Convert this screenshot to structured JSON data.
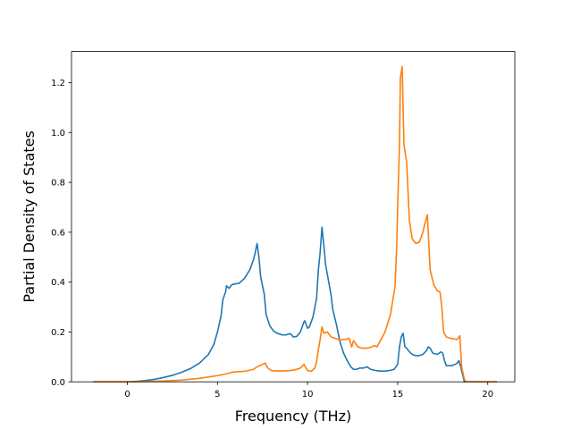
{
  "chart_data": {
    "type": "line",
    "title": "",
    "xlabel": "Frequency (THz)",
    "ylabel": "Partial Density of States",
    "xlim": [
      -3.1,
      21.5
    ],
    "ylim": [
      0.0,
      1.325
    ],
    "xticks": [
      0,
      5,
      10,
      15,
      20
    ],
    "yticks": [
      0.0,
      0.2,
      0.4,
      0.6,
      0.8,
      1.0,
      1.2
    ],
    "xtick_labels": [
      "0",
      "5",
      "10",
      "15",
      "20"
    ],
    "ytick_labels": [
      "0.0",
      "0.2",
      "0.4",
      "0.6",
      "0.8",
      "1.0",
      "1.2"
    ],
    "grid": false,
    "legend": "none",
    "series": [
      {
        "color": "#1f77b4",
        "points": [
          [
            -1.9,
            0
          ],
          [
            -1,
            0
          ],
          [
            0,
            0
          ],
          [
            0.5,
            0.002
          ],
          [
            1,
            0.005
          ],
          [
            1.5,
            0.01
          ],
          [
            2,
            0.017
          ],
          [
            2.5,
            0.026
          ],
          [
            3,
            0.038
          ],
          [
            3.5,
            0.053
          ],
          [
            4,
            0.075
          ],
          [
            4.5,
            0.11
          ],
          [
            4.8,
            0.15
          ],
          [
            5,
            0.2
          ],
          [
            5.2,
            0.265
          ],
          [
            5.3,
            0.33
          ],
          [
            5.45,
            0.36
          ],
          [
            5.5,
            0.385
          ],
          [
            5.65,
            0.375
          ],
          [
            5.8,
            0.39
          ],
          [
            6,
            0.393
          ],
          [
            6.2,
            0.395
          ],
          [
            6.5,
            0.415
          ],
          [
            6.8,
            0.45
          ],
          [
            7,
            0.49
          ],
          [
            7.1,
            0.52
          ],
          [
            7.2,
            0.555
          ],
          [
            7.3,
            0.5
          ],
          [
            7.4,
            0.42
          ],
          [
            7.6,
            0.35
          ],
          [
            7.7,
            0.27
          ],
          [
            7.9,
            0.225
          ],
          [
            8.1,
            0.205
          ],
          [
            8.3,
            0.195
          ],
          [
            8.6,
            0.188
          ],
          [
            8.8,
            0.188
          ],
          [
            9,
            0.193
          ],
          [
            9.1,
            0.19
          ],
          [
            9.2,
            0.18
          ],
          [
            9.4,
            0.182
          ],
          [
            9.6,
            0.2
          ],
          [
            9.8,
            0.24
          ],
          [
            9.85,
            0.245
          ],
          [
            10,
            0.215
          ],
          [
            10.1,
            0.22
          ],
          [
            10.3,
            0.26
          ],
          [
            10.5,
            0.335
          ],
          [
            10.6,
            0.45
          ],
          [
            10.7,
            0.52
          ],
          [
            10.8,
            0.62
          ],
          [
            10.9,
            0.55
          ],
          [
            11,
            0.47
          ],
          [
            11.1,
            0.43
          ],
          [
            11.3,
            0.35
          ],
          [
            11.4,
            0.29
          ],
          [
            11.6,
            0.23
          ],
          [
            11.8,
            0.16
          ],
          [
            12,
            0.115
          ],
          [
            12.2,
            0.085
          ],
          [
            12.4,
            0.06
          ],
          [
            12.55,
            0.05
          ],
          [
            12.7,
            0.05
          ],
          [
            12.9,
            0.055
          ],
          [
            13.1,
            0.055
          ],
          [
            13.3,
            0.06
          ],
          [
            13.5,
            0.05
          ],
          [
            13.8,
            0.045
          ],
          [
            14,
            0.043
          ],
          [
            14.3,
            0.043
          ],
          [
            14.6,
            0.046
          ],
          [
            14.8,
            0.05
          ],
          [
            15,
            0.07
          ],
          [
            15.1,
            0.14
          ],
          [
            15.2,
            0.18
          ],
          [
            15.3,
            0.195
          ],
          [
            15.4,
            0.14
          ],
          [
            15.5,
            0.135
          ],
          [
            15.6,
            0.125
          ],
          [
            15.8,
            0.11
          ],
          [
            16,
            0.105
          ],
          [
            16.2,
            0.105
          ],
          [
            16.4,
            0.11
          ],
          [
            16.6,
            0.125
          ],
          [
            16.7,
            0.14
          ],
          [
            16.8,
            0.135
          ],
          [
            16.95,
            0.115
          ],
          [
            17.2,
            0.11
          ],
          [
            17.4,
            0.12
          ],
          [
            17.5,
            0.115
          ],
          [
            17.6,
            0.085
          ],
          [
            17.7,
            0.065
          ],
          [
            18,
            0.065
          ],
          [
            18.2,
            0.07
          ],
          [
            18.3,
            0.075
          ],
          [
            18.4,
            0.085
          ],
          [
            18.5,
            0.06
          ],
          [
            18.7,
            0
          ],
          [
            19,
            0
          ],
          [
            20,
            0
          ],
          [
            20.5,
            0
          ]
        ]
      },
      {
        "color": "#ff7f0e",
        "points": [
          [
            -1.9,
            0
          ],
          [
            -1,
            0
          ],
          [
            0,
            0
          ],
          [
            1,
            0.001
          ],
          [
            2,
            0.003
          ],
          [
            3,
            0.007
          ],
          [
            4,
            0.014
          ],
          [
            5,
            0.025
          ],
          [
            5.5,
            0.032
          ],
          [
            5.8,
            0.038
          ],
          [
            6,
            0.04
          ],
          [
            6.5,
            0.042
          ],
          [
            7,
            0.05
          ],
          [
            7.2,
            0.06
          ],
          [
            7.5,
            0.07
          ],
          [
            7.65,
            0.075
          ],
          [
            7.8,
            0.055
          ],
          [
            8,
            0.045
          ],
          [
            8.5,
            0.043
          ],
          [
            9,
            0.045
          ],
          [
            9.3,
            0.048
          ],
          [
            9.6,
            0.055
          ],
          [
            9.8,
            0.07
          ],
          [
            10,
            0.045
          ],
          [
            10.2,
            0.042
          ],
          [
            10.4,
            0.055
          ],
          [
            10.5,
            0.08
          ],
          [
            10.6,
            0.13
          ],
          [
            10.7,
            0.17
          ],
          [
            10.8,
            0.22
          ],
          [
            10.9,
            0.195
          ],
          [
            11.1,
            0.2
          ],
          [
            11.3,
            0.18
          ],
          [
            11.5,
            0.175
          ],
          [
            11.8,
            0.168
          ],
          [
            12.1,
            0.17
          ],
          [
            12.3,
            0.175
          ],
          [
            12.45,
            0.14
          ],
          [
            12.55,
            0.165
          ],
          [
            12.8,
            0.14
          ],
          [
            13,
            0.135
          ],
          [
            13.3,
            0.135
          ],
          [
            13.5,
            0.138
          ],
          [
            13.7,
            0.145
          ],
          [
            13.85,
            0.14
          ],
          [
            14,
            0.16
          ],
          [
            14.3,
            0.2
          ],
          [
            14.6,
            0.27
          ],
          [
            14.85,
            0.38
          ],
          [
            14.95,
            0.55
          ],
          [
            15,
            0.7
          ],
          [
            15.1,
            0.95
          ],
          [
            15.15,
            1.22
          ],
          [
            15.25,
            1.265
          ],
          [
            15.35,
            0.95
          ],
          [
            15.5,
            0.88
          ],
          [
            15.65,
            0.65
          ],
          [
            15.8,
            0.575
          ],
          [
            16,
            0.555
          ],
          [
            16.2,
            0.56
          ],
          [
            16.4,
            0.6
          ],
          [
            16.55,
            0.645
          ],
          [
            16.65,
            0.67
          ],
          [
            16.8,
            0.45
          ],
          [
            17,
            0.39
          ],
          [
            17.2,
            0.365
          ],
          [
            17.35,
            0.36
          ],
          [
            17.45,
            0.3
          ],
          [
            17.55,
            0.2
          ],
          [
            17.7,
            0.18
          ],
          [
            17.9,
            0.175
          ],
          [
            18.1,
            0.172
          ],
          [
            18.3,
            0.17
          ],
          [
            18.45,
            0.185
          ],
          [
            18.55,
            0.06
          ],
          [
            18.7,
            0.01
          ],
          [
            18.8,
            0
          ],
          [
            19,
            0
          ],
          [
            20,
            0
          ],
          [
            20.5,
            0
          ]
        ]
      }
    ]
  }
}
